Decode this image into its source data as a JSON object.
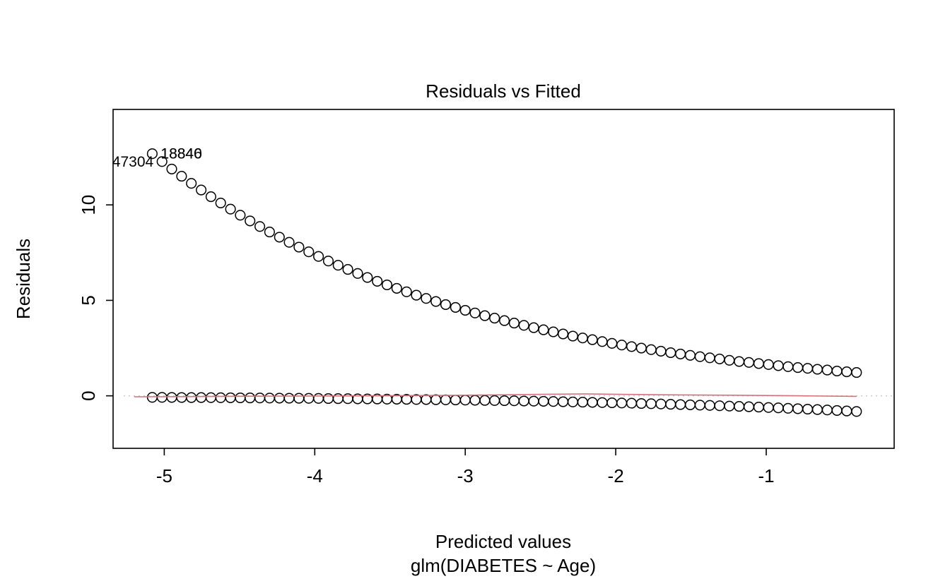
{
  "figure": {
    "title": "Residuals vs Fitted",
    "xlabel": "Predicted values",
    "xlabel_sub": "glm(DIABETES ~ Age)",
    "ylabel": "Residuals"
  },
  "colors": {
    "points": "#000000",
    "smoother": "#d4707c",
    "zero_line": "#c8c8c8",
    "axis": "#000000",
    "background": "#ffffff"
  },
  "chart_data": {
    "type": "scatter",
    "title": "Residuals vs Fitted",
    "xlabel": "Predicted values",
    "xlabel_sub": "glm(DIABETES ~ Age)",
    "ylabel": "Residuals",
    "xlim": [
      -5.34,
      -0.15
    ],
    "ylim": [
      -2.75,
      15.0
    ],
    "x_ticks": [
      -5,
      -4,
      -3,
      -2,
      -1
    ],
    "y_ticks": [
      0,
      5,
      10
    ],
    "grid": false,
    "legend": "none",
    "x": [
      -5.08,
      -5.015,
      -4.95,
      -4.885,
      -4.82,
      -4.755,
      -4.69,
      -4.625,
      -4.56,
      -4.495,
      -4.43,
      -4.365,
      -4.3,
      -4.235,
      -4.17,
      -4.105,
      -4.04,
      -3.975,
      -3.91,
      -3.845,
      -3.78,
      -3.715,
      -3.65,
      -3.585,
      -3.52,
      -3.455,
      -3.39,
      -3.325,
      -3.26,
      -3.195,
      -3.13,
      -3.065,
      -3.0,
      -2.935,
      -2.87,
      -2.805,
      -2.74,
      -2.675,
      -2.61,
      -2.545,
      -2.48,
      -2.415,
      -2.35,
      -2.285,
      -2.22,
      -2.155,
      -2.09,
      -2.025,
      -1.96,
      -1.895,
      -1.83,
      -1.765,
      -1.7,
      -1.635,
      -1.57,
      -1.505,
      -1.44,
      -1.375,
      -1.31,
      -1.245,
      -1.18,
      -1.115,
      -1.05,
      -0.985,
      -0.92,
      -0.855,
      -0.79,
      -0.725,
      -0.66,
      -0.595,
      -0.53,
      -0.465,
      -0.4
    ],
    "series": [
      {
        "name": "positive-residuals",
        "values": [
          12.68,
          12.27,
          11.88,
          11.5,
          11.13,
          10.78,
          10.43,
          10.1,
          9.78,
          9.46,
          9.16,
          8.87,
          8.58,
          8.31,
          8.04,
          7.79,
          7.54,
          7.3,
          7.06,
          6.84,
          6.62,
          6.41,
          6.2,
          6.0,
          5.81,
          5.63,
          5.45,
          5.27,
          5.1,
          4.94,
          4.78,
          4.63,
          4.48,
          4.34,
          4.2,
          4.07,
          3.94,
          3.81,
          3.69,
          3.57,
          3.46,
          3.35,
          3.24,
          3.13,
          3.03,
          2.94,
          2.84,
          2.75,
          2.66,
          2.58,
          2.5,
          2.42,
          2.34,
          2.26,
          2.19,
          2.12,
          2.05,
          1.99,
          1.93,
          1.86,
          1.8,
          1.75,
          1.69,
          1.64,
          1.58,
          1.53,
          1.48,
          1.44,
          1.39,
          1.35,
          1.3,
          1.26,
          1.22
        ]
      },
      {
        "name": "negative-residuals",
        "values": [
          -0.079,
          -0.081,
          -0.084,
          -0.087,
          -0.09,
          -0.093,
          -0.096,
          -0.099,
          -0.102,
          -0.106,
          -0.109,
          -0.113,
          -0.117,
          -0.12,
          -0.124,
          -0.128,
          -0.133,
          -0.137,
          -0.142,
          -0.146,
          -0.151,
          -0.156,
          -0.161,
          -0.166,
          -0.172,
          -0.178,
          -0.184,
          -0.19,
          -0.196,
          -0.202,
          -0.209,
          -0.216,
          -0.223,
          -0.23,
          -0.238,
          -0.246,
          -0.254,
          -0.262,
          -0.271,
          -0.28,
          -0.289,
          -0.299,
          -0.309,
          -0.319,
          -0.33,
          -0.341,
          -0.352,
          -0.363,
          -0.375,
          -0.388,
          -0.4,
          -0.414,
          -0.427,
          -0.441,
          -0.456,
          -0.471,
          -0.487,
          -0.503,
          -0.519,
          -0.537,
          -0.554,
          -0.573,
          -0.592,
          -0.611,
          -0.631,
          -0.652,
          -0.674,
          -0.696,
          -0.719,
          -0.743,
          -0.767,
          -0.792,
          -0.819
        ]
      }
    ],
    "smoother": {
      "name": "red-smoother-line",
      "points": [
        {
          "x": -5.2,
          "y": -0.05
        },
        {
          "x": -4.8,
          "y": -0.04
        },
        {
          "x": -4.4,
          "y": -0.02
        },
        {
          "x": -4.0,
          "y": -0.01
        },
        {
          "x": -3.6,
          "y": 0.0
        },
        {
          "x": -3.2,
          "y": 0.02
        },
        {
          "x": -2.8,
          "y": 0.05
        },
        {
          "x": -2.5,
          "y": 0.08
        },
        {
          "x": -2.2,
          "y": 0.1
        },
        {
          "x": -1.9,
          "y": 0.07
        },
        {
          "x": -1.6,
          "y": 0.05
        },
        {
          "x": -1.2,
          "y": 0.03
        },
        {
          "x": -0.8,
          "y": 0.0
        },
        {
          "x": -0.4,
          "y": -0.03
        }
      ]
    },
    "zero_line": {
      "y": 0,
      "style": "dotted"
    },
    "point_labels": [
      {
        "text": "18840",
        "x": -5.08,
        "y": 12.68,
        "side": "right"
      },
      {
        "text": "18846",
        "x": -5.08,
        "y": 12.68,
        "side": "right"
      },
      {
        "text": "47304",
        "x": -5.015,
        "y": 12.27,
        "side": "left"
      }
    ]
  }
}
